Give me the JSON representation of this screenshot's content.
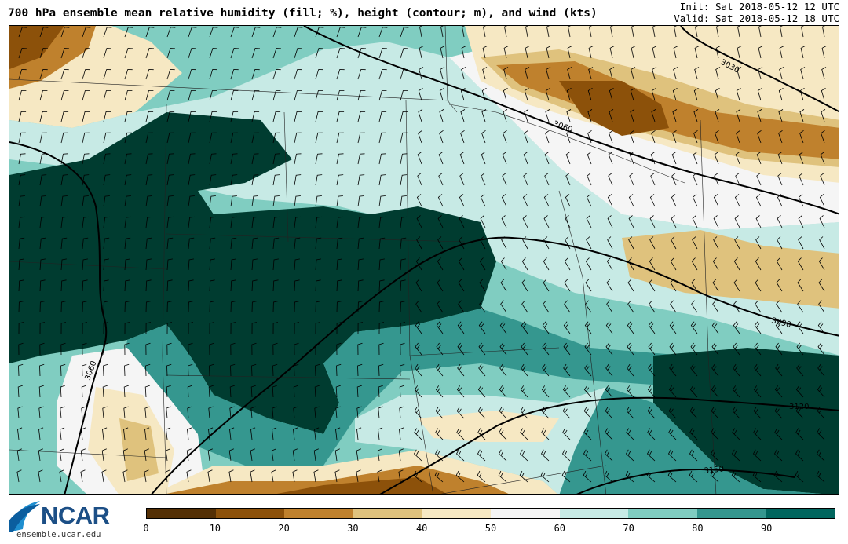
{
  "header": {
    "title": "700 hPa ensemble mean relative humidity (fill; %), height (contour; m), and wind (kts)",
    "init": "Init: Sat 2018-05-12 12 UTC",
    "valid": "Valid: Sat 2018-05-12 18 UTC"
  },
  "map": {
    "contour_labels": [
      "3030",
      "3060",
      "3090",
      "3120",
      "3150",
      "3060"
    ]
  },
  "colorbar": {
    "colors": [
      "#543005",
      "#8c510a",
      "#bf812d",
      "#dfc27d",
      "#f6e8c3",
      "#f5f5f5",
      "#c7eae5",
      "#80cdc1",
      "#35978f",
      "#01665e",
      "#003c30"
    ],
    "labels": [
      "0",
      "10",
      "20",
      "30",
      "40",
      "50",
      "60",
      "70",
      "80",
      "90"
    ]
  },
  "logo": {
    "name": "NCAR",
    "url": "ensemble.ucar.edu"
  }
}
